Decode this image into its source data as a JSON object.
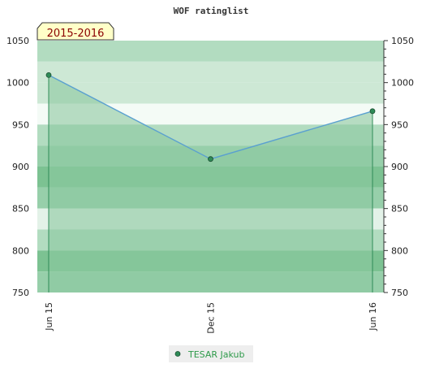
{
  "chart_data": {
    "type": "area",
    "title": "WOF ratinglist",
    "season_label": "2015-2016",
    "x": [
      "Jun 15",
      "Dec 15",
      "Jun 16"
    ],
    "series": [
      {
        "name": "TESAR Jakub",
        "values": [
          1009,
          909,
          966
        ]
      }
    ],
    "ylim": [
      750,
      1050
    ],
    "yticks": [
      750,
      800,
      850,
      900,
      950,
      1000,
      1050
    ],
    "y_minor_step": 10,
    "grid": "banded",
    "legend": "bottom-center",
    "colors": {
      "line": "#5aa0d0",
      "area": "#8cc8a0",
      "marker": "#2e8b57",
      "drop_line": "#2e8b57",
      "legend_text": "#2e9a4a",
      "season_bg": "#ffffc8",
      "season_text": "#8b0000",
      "bands": [
        "#f4fbf6",
        "#e3f2e8",
        "#cde8d5",
        "#b2dcc0",
        "#97cfaa",
        "#7cc292"
      ]
    }
  }
}
